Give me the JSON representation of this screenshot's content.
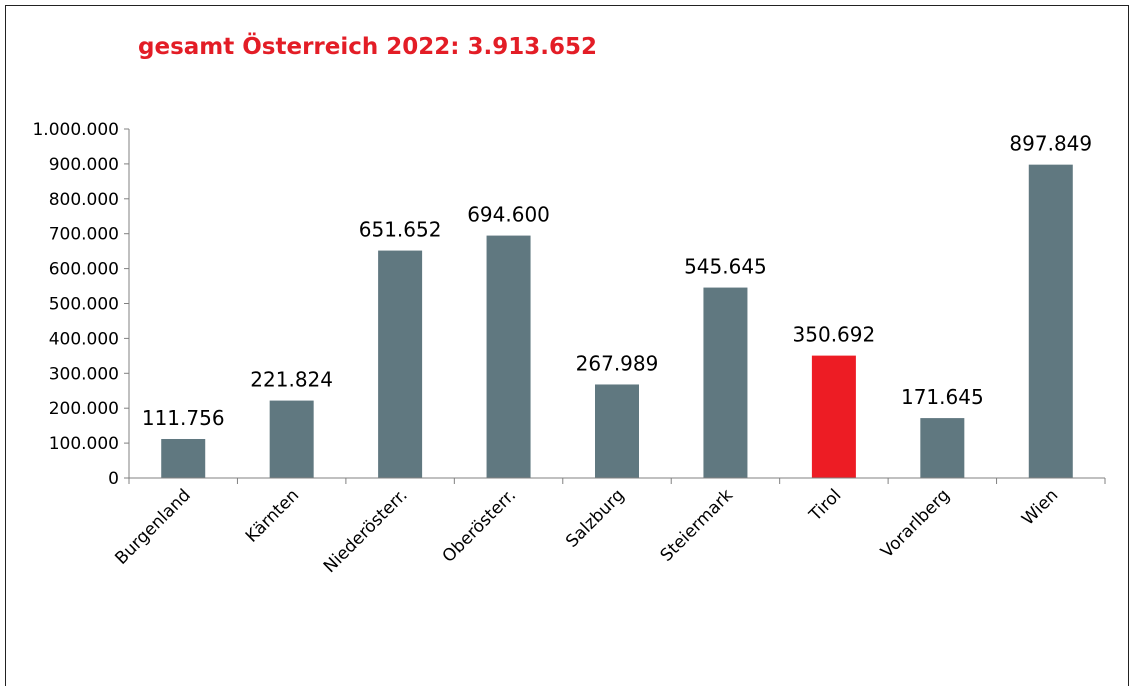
{
  "chart_data": {
    "type": "bar",
    "title": "gesamt Österreich 2022: 3.913.652",
    "xlabel": "",
    "ylabel": "",
    "categories": [
      "Burgenland",
      "Kärnten",
      "Niederösterr.",
      "Oberösterr.",
      "Salzburg",
      "Steiermark",
      "Tirol",
      "Vorarlberg",
      "Wien"
    ],
    "values": [
      111756,
      221824,
      651652,
      694600,
      267989,
      545645,
      350692,
      171645,
      897849
    ],
    "value_labels": [
      "111.756",
      "221.824",
      "651.652",
      "694.600",
      "267.989",
      "545.645",
      "350.692",
      "171.645",
      "897.849"
    ],
    "ylim": [
      0,
      1000000
    ],
    "yticks": [
      0,
      100000,
      200000,
      300000,
      400000,
      500000,
      600000,
      700000,
      800000,
      900000,
      1000000
    ],
    "ytick_labels": [
      "0",
      "100.000",
      "200.000",
      "300.000",
      "400.000",
      "500.000",
      "600.000",
      "700.000",
      "800.000",
      "900.000",
      "1.000.000"
    ],
    "grid": false,
    "legend": "none",
    "highlight_category": "Tirol",
    "colors": {
      "bar": "#607880",
      "highlight": "#ed1c24",
      "title": "#e31d26",
      "axis": "#808080"
    }
  }
}
